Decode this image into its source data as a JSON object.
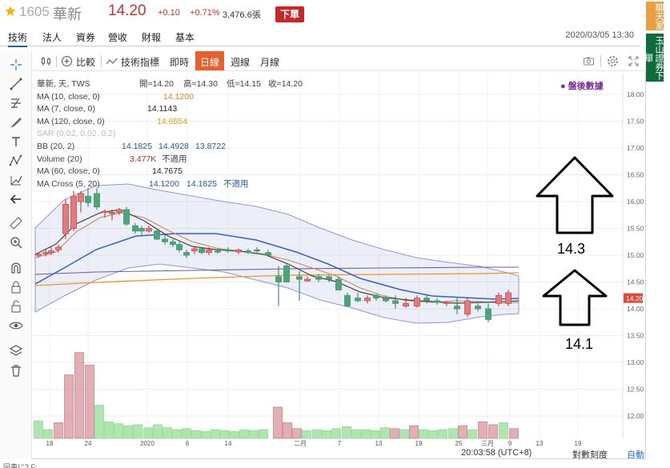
{
  "quote": {
    "code": "1605",
    "name": "華新",
    "price": "14.20",
    "change": "+0.10",
    "change_pct": "+0.71%",
    "volume": "3,476.6張",
    "order_label": "下單"
  },
  "tabs": [
    "技術",
    "法人",
    "資券",
    "營收",
    "財報",
    "基本"
  ],
  "timestamp": "2020/03/05 13:30",
  "side_buttons": {
    "chat": "聊天室",
    "order": "玉山證券下單"
  },
  "toolbar": {
    "compare_label": "比較",
    "indicators_label": "技術指標",
    "intraday_label": "即時",
    "daily_label": "日線",
    "weekly_label": "週線",
    "monthly_label": "月線"
  },
  "legend": {
    "main": {
      "label": "華新, 天, TWS",
      "open": "開=14.20",
      "high": "高=14.30",
      "low": "低=14.15",
      "close": "收=14.20"
    },
    "ma10": {
      "label": "MA (10, close, 0)",
      "value": "14.1200"
    },
    "ma7": {
      "label": "MA (7, close, 0)",
      "value": "14.1143"
    },
    "ma120": {
      "label": "MA (120, close, 0)",
      "value": "14.6554"
    },
    "sar": {
      "label": "SAR (0.02, 0.02, 0.2)"
    },
    "bb": {
      "label": "BB (20, 2)",
      "v1": "14.1825",
      "v2": "14.4928",
      "v3": "13.8722"
    },
    "volume": {
      "label": "Volume (20)",
      "value": "3.477K",
      "note": "不適用"
    },
    "ma60": {
      "label": "MA (60, close, 0)",
      "value": "14.7675"
    },
    "macross": {
      "label": "MA Cross (5, 20)",
      "v1": "14.1200",
      "v2": "14.1825",
      "note": "不適用"
    }
  },
  "later_data_label": "● 盤後數據",
  "price_axis": [
    "18.00",
    "17.50",
    "17.00",
    "16.50",
    "16.00",
    "15.50",
    "15.00",
    "14.50",
    "14.00",
    "13.50",
    "13.00",
    "12.50",
    "12.00"
  ],
  "current_price_tag": "14.20",
  "x_axis": [
    "18",
    "24",
    "2020",
    "8",
    "14",
    "二月",
    "7",
    "13",
    "19",
    "25",
    "三月",
    "9",
    "13",
    "19"
  ],
  "bottom": {
    "time": "20:03:58 (UTC+8)",
    "log": "對數刻度",
    "auto": "自動"
  },
  "annotations": {
    "upper": "14.3",
    "lower": "14.1"
  },
  "footer": "回車に? F:"
}
